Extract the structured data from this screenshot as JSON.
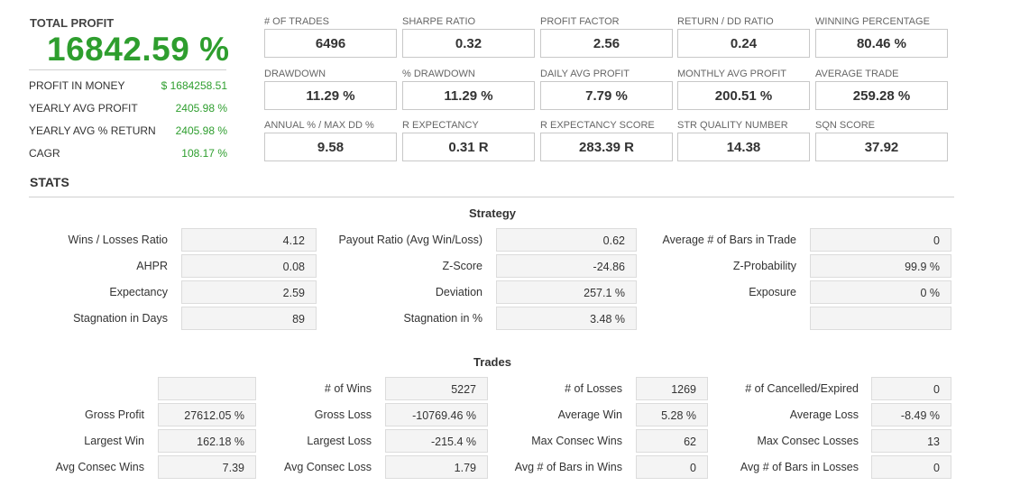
{
  "summary": {
    "total_profit_label": "TOTAL PROFIT",
    "total_profit_value": "16842.59 %",
    "rows": [
      {
        "label": "PROFIT IN MONEY",
        "value": "$ 1684258.51"
      },
      {
        "label": "YEARLY AVG PROFIT",
        "value": "2405.98 %"
      },
      {
        "label": "YEARLY AVG % RETURN",
        "value": "2405.98 %"
      },
      {
        "label": "CAGR",
        "value": "108.17 %"
      }
    ]
  },
  "metrics": [
    {
      "label": "# OF TRADES",
      "value": "6496"
    },
    {
      "label": "SHARPE RATIO",
      "value": "0.32"
    },
    {
      "label": "PROFIT FACTOR",
      "value": "2.56"
    },
    {
      "label": "RETURN / DD RATIO",
      "value": "0.24"
    },
    {
      "label": "WINNING PERCENTAGE",
      "value": "80.46 %"
    },
    {
      "label": "DRAWDOWN",
      "value": "11.29 %"
    },
    {
      "label": "% DRAWDOWN",
      "value": "11.29 %"
    },
    {
      "label": "DAILY AVG PROFIT",
      "value": "7.79 %"
    },
    {
      "label": "MONTHLY AVG PROFIT",
      "value": "200.51 %"
    },
    {
      "label": "AVERAGE TRADE",
      "value": "259.28 %"
    },
    {
      "label": "ANNUAL % / MAX DD %",
      "value": "9.58"
    },
    {
      "label": "R EXPECTANCY",
      "value": "0.31 R"
    },
    {
      "label": "R EXPECTANCY SCORE",
      "value": "283.39 R"
    },
    {
      "label": "STR QUALITY NUMBER",
      "value": "14.38"
    },
    {
      "label": "SQN SCORE",
      "value": "37.92"
    }
  ],
  "stats_title": "STATS",
  "strategy": {
    "title": "Strategy",
    "rows": [
      [
        {
          "label": "Wins / Losses Ratio",
          "value": "4.12"
        },
        {
          "label": "Payout Ratio (Avg Win/Loss)",
          "value": "0.62"
        },
        {
          "label": "Average # of Bars in Trade",
          "value": "0"
        }
      ],
      [
        {
          "label": "AHPR",
          "value": "0.08"
        },
        {
          "label": "Z-Score",
          "value": "-24.86"
        },
        {
          "label": "Z-Probability",
          "value": "99.9 %"
        }
      ],
      [
        {
          "label": "Expectancy",
          "value": "2.59"
        },
        {
          "label": "Deviation",
          "value": "257.1 %"
        },
        {
          "label": "Exposure",
          "value": "0 %"
        }
      ],
      [
        {
          "label": "Stagnation in Days",
          "value": "89"
        },
        {
          "label": "Stagnation in %",
          "value": "3.48 %"
        },
        {
          "label": "",
          "value": ""
        }
      ]
    ]
  },
  "trades": {
    "title": "Trades",
    "rows": [
      [
        {
          "label": "",
          "value": ""
        },
        {
          "label": "# of Wins",
          "value": "5227"
        },
        {
          "label": "# of Losses",
          "value": "1269"
        },
        {
          "label": "# of Cancelled/Expired",
          "value": "0"
        }
      ],
      [
        {
          "label": "Gross Profit",
          "value": "27612.05 %"
        },
        {
          "label": "Gross Loss",
          "value": "-10769.46 %"
        },
        {
          "label": "Average Win",
          "value": "5.28 %"
        },
        {
          "label": "Average Loss",
          "value": "-8.49 %"
        }
      ],
      [
        {
          "label": "Largest Win",
          "value": "162.18 %"
        },
        {
          "label": "Largest Loss",
          "value": "-215.4 %"
        },
        {
          "label": "Max Consec Wins",
          "value": "62"
        },
        {
          "label": "Max Consec Losses",
          "value": "13"
        }
      ],
      [
        {
          "label": "Avg Consec Wins",
          "value": "7.39"
        },
        {
          "label": "Avg Consec Loss",
          "value": "1.79"
        },
        {
          "label": "Avg # of Bars in Wins",
          "value": "0"
        },
        {
          "label": "Avg # of Bars in Losses",
          "value": "0"
        }
      ]
    ]
  }
}
